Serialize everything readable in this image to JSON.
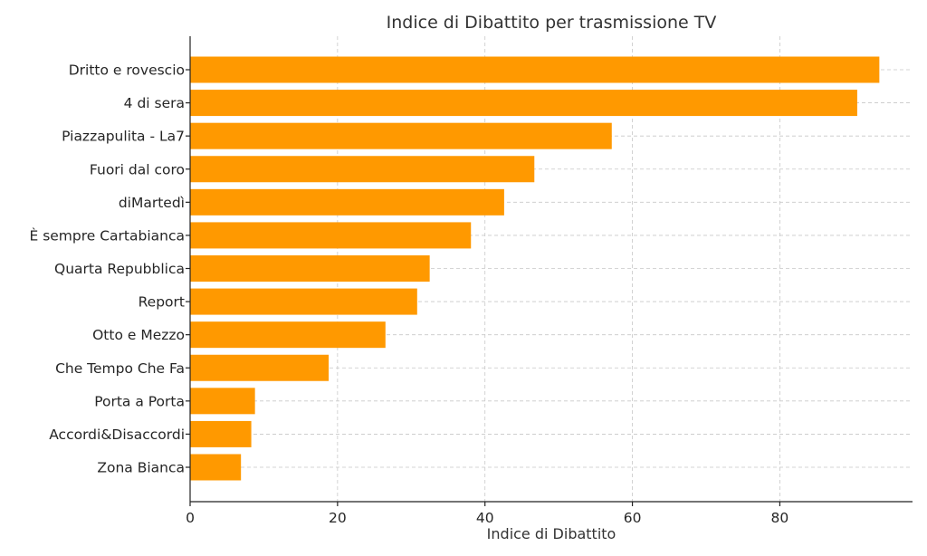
{
  "chart_data": {
    "type": "bar",
    "orientation": "horizontal",
    "title": "Indice di Dibattito per trasmissione TV",
    "xlabel": "Indice di Dibattito",
    "ylabel": "",
    "xlim": [
      0,
      98
    ],
    "xticks": [
      0,
      20,
      40,
      60,
      80
    ],
    "grid": true,
    "bar_color": "#ff9900",
    "categories": [
      "Dritto e rovescio",
      "4 di sera",
      "Piazzapulita - La7",
      "Fuori dal coro",
      "diMartedì",
      "È sempre Cartabianca",
      "Quarta Repubblica",
      "Report",
      "Otto e Mezzo",
      "Che Tempo Che Fa",
      "Porta a Porta",
      "Accordi&Disaccordi",
      "Zona Bianca"
    ],
    "values": [
      93.5,
      90.5,
      57.2,
      46.7,
      42.6,
      38.1,
      32.5,
      30.8,
      26.5,
      18.8,
      8.8,
      8.3,
      6.9
    ]
  }
}
